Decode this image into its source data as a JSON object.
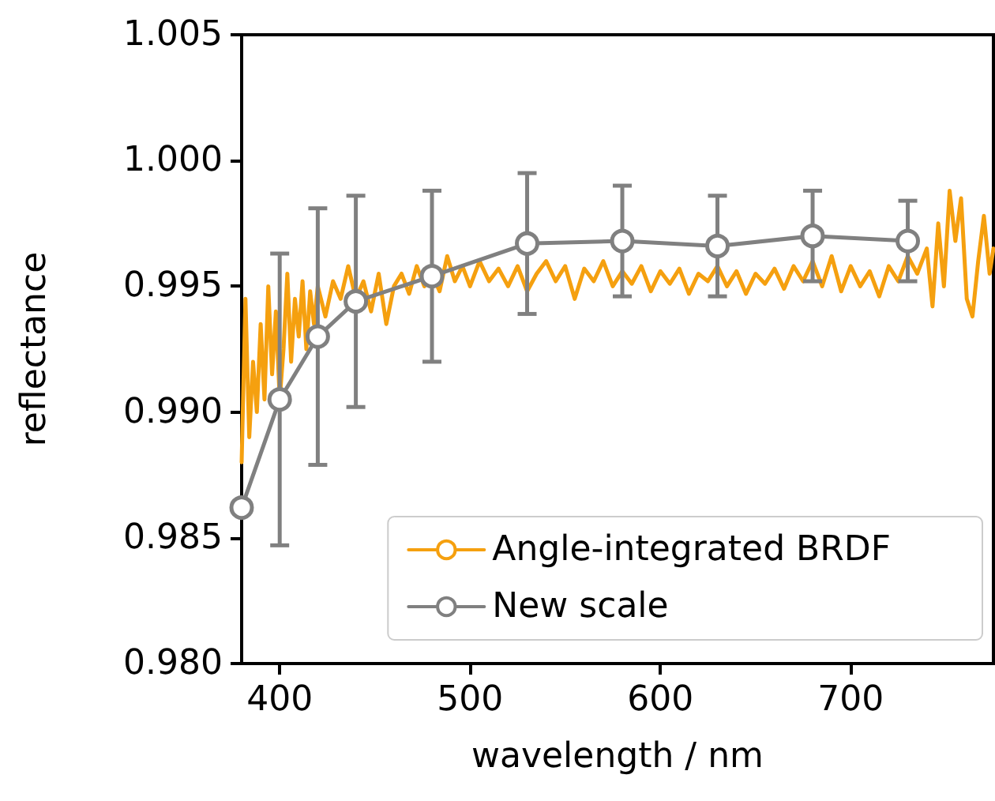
{
  "chart_data": {
    "type": "line",
    "xlabel": "wavelength / nm",
    "ylabel": "reflectance",
    "xlim": [
      380,
      775
    ],
    "xticks": [
      400,
      500,
      600,
      700
    ],
    "ylim": [
      0.98,
      1.005
    ],
    "yticks": [
      {
        "value": 0.98,
        "label": "0.980"
      },
      {
        "value": 0.985,
        "label": "0.985"
      },
      {
        "value": 0.99,
        "label": "0.990"
      },
      {
        "value": 0.995,
        "label": "0.995"
      },
      {
        "value": 1.0,
        "label": "1.000"
      },
      {
        "value": 1.005,
        "label": "1.005"
      }
    ],
    "grid": false,
    "legend": "bottom right",
    "series": [
      {
        "name": "Angle-integrated BRDF",
        "color": "#f5a00f",
        "marker": "none",
        "x": [
          380,
          382,
          384,
          386,
          388,
          390,
          392,
          394,
          396,
          398,
          400,
          402,
          404,
          406,
          408,
          410,
          412,
          414,
          416,
          418,
          420,
          424,
          428,
          432,
          436,
          440,
          444,
          448,
          452,
          456,
          460,
          464,
          468,
          472,
          476,
          480,
          484,
          488,
          492,
          496,
          500,
          505,
          510,
          515,
          520,
          525,
          530,
          535,
          540,
          545,
          550,
          555,
          560,
          565,
          570,
          575,
          580,
          585,
          590,
          595,
          600,
          605,
          610,
          615,
          620,
          625,
          630,
          635,
          640,
          645,
          650,
          655,
          660,
          665,
          670,
          675,
          680,
          685,
          690,
          695,
          700,
          705,
          710,
          715,
          720,
          725,
          730,
          735,
          740,
          743,
          746,
          749,
          752,
          755,
          758,
          761,
          764,
          767,
          770,
          773,
          775
        ],
        "values": [
          0.988,
          0.9945,
          0.989,
          0.992,
          0.99,
          0.9935,
          0.9905,
          0.995,
          0.9915,
          0.994,
          0.9905,
          0.9925,
          0.9955,
          0.992,
          0.9945,
          0.993,
          0.9952,
          0.9925,
          0.9948,
          0.9935,
          0.995,
          0.9938,
          0.9952,
          0.9945,
          0.9958,
          0.9945,
          0.9952,
          0.994,
          0.9955,
          0.9935,
          0.995,
          0.9955,
          0.9947,
          0.9958,
          0.995,
          0.9955,
          0.9948,
          0.9962,
          0.9952,
          0.9958,
          0.995,
          0.996,
          0.9952,
          0.9957,
          0.995,
          0.9958,
          0.9948,
          0.9955,
          0.996,
          0.9952,
          0.9958,
          0.9945,
          0.9957,
          0.9952,
          0.996,
          0.995,
          0.9956,
          0.9951,
          0.9958,
          0.9948,
          0.9956,
          0.9951,
          0.9957,
          0.9947,
          0.9955,
          0.9952,
          0.9958,
          0.995,
          0.9956,
          0.9947,
          0.9955,
          0.9951,
          0.9957,
          0.9949,
          0.9958,
          0.9952,
          0.996,
          0.995,
          0.9962,
          0.9948,
          0.9958,
          0.995,
          0.9956,
          0.9946,
          0.9958,
          0.9952,
          0.9962,
          0.9955,
          0.9965,
          0.9942,
          0.9975,
          0.995,
          0.9988,
          0.9968,
          0.9985,
          0.9945,
          0.9938,
          0.996,
          0.9978,
          0.9955,
          0.9965
        ]
      },
      {
        "name": "New scale",
        "color": "#808080",
        "marker": "circle",
        "x": [
          380,
          400,
          420,
          440,
          480,
          530,
          580,
          630,
          680,
          730
        ],
        "values": [
          0.9862,
          0.9905,
          0.993,
          0.9944,
          0.9954,
          0.9967,
          0.9968,
          0.9966,
          0.997,
          0.9968
        ],
        "errors": [
          null,
          0.0058,
          0.0051,
          0.0042,
          0.0034,
          0.0028,
          0.0022,
          0.002,
          0.0018,
          0.0016
        ]
      }
    ]
  }
}
